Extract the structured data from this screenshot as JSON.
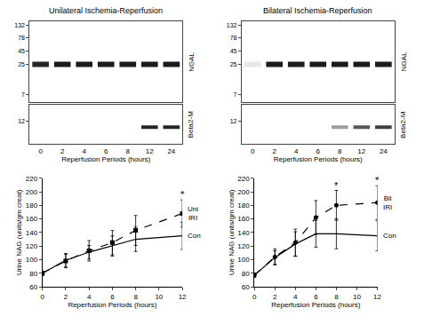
{
  "chart_data": [
    {
      "type": "blot",
      "title": "Unilateral Ischemia-Reperfusion",
      "categories": [
        "0",
        "2",
        "4",
        "6",
        "8",
        "12",
        "24"
      ],
      "xlabel": "Reperfusion Periods (hours)",
      "panels": [
        {
          "name": "NGAL",
          "band": 25,
          "values": [
            0.9,
            0.95,
            0.95,
            0.95,
            0.95,
            0.95,
            0.95
          ],
          "log": "y",
          "ylim": [
            5,
            160
          ],
          "yticks": [
            132,
            78,
            45,
            25,
            7
          ]
        },
        {
          "name": "Beta2-M",
          "band": 11,
          "values": [
            0,
            0,
            0,
            0,
            0,
            0.9,
            0.9
          ],
          "ylim": [
            8,
            15
          ],
          "yticks": [
            12
          ]
        }
      ]
    },
    {
      "type": "blot",
      "title": "Bilateral Ischemia-Reperfusion",
      "categories": [
        "0",
        "2",
        "4",
        "6",
        "8",
        "12",
        "24"
      ],
      "xlabel": "Reperfusion Periods (hours)",
      "panels": [
        {
          "name": "NGAL",
          "band": 25,
          "values": [
            0.1,
            0.95,
            0.95,
            0.95,
            0.95,
            0.95,
            0.95
          ],
          "log": "y",
          "ylim": [
            5,
            160
          ],
          "yticks": [
            132,
            78,
            45,
            25,
            7
          ]
        },
        {
          "name": "Beta2-M",
          "band": 11,
          "values": [
            0,
            0,
            0,
            0,
            0.4,
            0.7,
            0.8
          ],
          "ylim": [
            8,
            15
          ],
          "yticks": [
            12
          ]
        }
      ]
    },
    {
      "type": "line",
      "xlabel": "Reperfusion Periods (hours)",
      "ylabel": "Urine NAG (units/gm creat)",
      "x": [
        0,
        2,
        4,
        6,
        8,
        12
      ],
      "xlim": [
        0,
        12
      ],
      "xticks": [
        0,
        2,
        4,
        6,
        8,
        10,
        12
      ],
      "ylim": [
        60,
        220
      ],
      "yticks": [
        60,
        80,
        100,
        120,
        140,
        160,
        180,
        200,
        220
      ],
      "grid": false,
      "series": [
        {
          "name": "Uni IRI",
          "color": "#000000",
          "line_style": "dashed",
          "marker": "square",
          "values": [
            80,
            98,
            113,
            125,
            143,
            168
          ],
          "error": [
            3,
            10,
            15,
            18,
            22,
            20
          ]
        },
        {
          "name": "Con",
          "color": "#000000",
          "line_style": "solid",
          "marker": "none",
          "values": [
            80,
            99,
            111,
            120,
            130,
            135
          ],
          "error": [
            3,
            10,
            10,
            15,
            18,
            20
          ]
        }
      ],
      "annotations": [
        {
          "x": 12,
          "text": "*"
        }
      ]
    },
    {
      "type": "line",
      "xlabel": "Reperfusion Periods (hours)",
      "ylabel": "Urine NAG (units/gm creat)",
      "x": [
        0,
        2,
        4,
        6,
        8,
        12
      ],
      "xlim": [
        0,
        12
      ],
      "xticks": [
        0,
        2,
        4,
        6,
        8,
        10,
        12
      ],
      "ylim": [
        60,
        220
      ],
      "yticks": [
        60,
        80,
        100,
        120,
        140,
        160,
        180,
        200,
        220
      ],
      "grid": false,
      "series": [
        {
          "name": "Bil IRI",
          "color": "#000000",
          "line_style": "dashed",
          "marker": "circle",
          "values": [
            77,
            104,
            125,
            162,
            180,
            184
          ],
          "error": [
            3,
            12,
            20,
            25,
            22,
            25
          ]
        },
        {
          "name": "Con",
          "color": "#000000",
          "line_style": "solid",
          "marker": "none",
          "values": [
            77,
            103,
            123,
            138,
            138,
            135
          ],
          "error": [
            3,
            10,
            18,
            20,
            22,
            22
          ]
        }
      ],
      "annotations": [
        {
          "x": 8,
          "text": "*"
        },
        {
          "x": 12,
          "text": "*"
        }
      ]
    }
  ]
}
